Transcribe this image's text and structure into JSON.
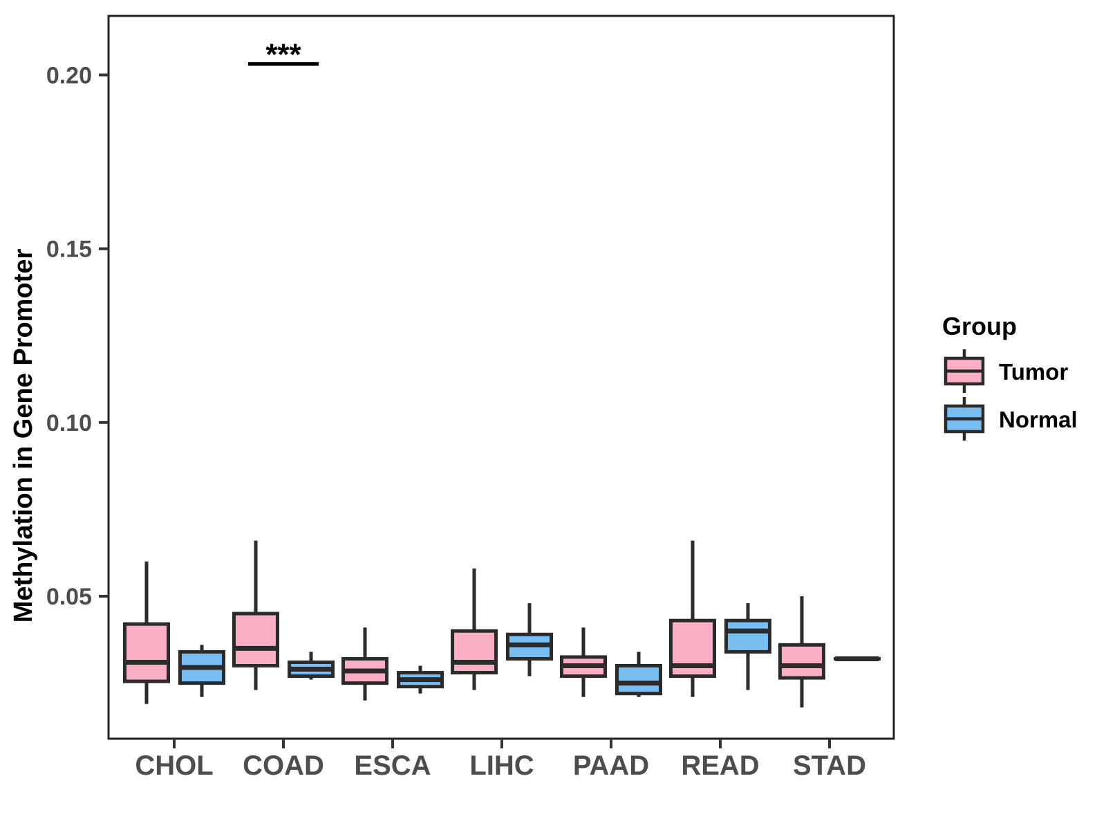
{
  "chart_data": {
    "type": "boxplot",
    "title": "",
    "xlabel": "",
    "ylabel": "Methylation in Gene Promoter",
    "categories": [
      "CHOL",
      "COAD",
      "ESCA",
      "LIHC",
      "PAAD",
      "READ",
      "STAD"
    ],
    "y_ticks": [
      {
        "value": 0.05,
        "label": "0.05"
      },
      {
        "value": 0.1,
        "label": "0.10"
      },
      {
        "value": 0.15,
        "label": "0.15"
      },
      {
        "value": 0.2,
        "label": "0.20"
      }
    ],
    "ylim": [
      0.009,
      0.217
    ],
    "grid": "off",
    "legend": {
      "title": "Group",
      "position": "right",
      "entries": [
        {
          "label": "Tumor",
          "color": "#FBAFC3"
        },
        {
          "label": "Normal",
          "color": "#79BEF2"
        }
      ]
    },
    "series": [
      {
        "name": "Tumor",
        "color": "#FBAFC3",
        "boxes": [
          {
            "category": "CHOL",
            "whisker_low": 0.019,
            "q1": 0.0255,
            "median": 0.031,
            "q3": 0.042,
            "whisker_high": 0.06
          },
          {
            "category": "COAD",
            "whisker_low": 0.023,
            "q1": 0.03,
            "median": 0.035,
            "q3": 0.045,
            "whisker_high": 0.066
          },
          {
            "category": "ESCA",
            "whisker_low": 0.02,
            "q1": 0.025,
            "median": 0.0285,
            "q3": 0.032,
            "whisker_high": 0.041
          },
          {
            "category": "LIHC",
            "whisker_low": 0.023,
            "q1": 0.028,
            "median": 0.031,
            "q3": 0.04,
            "whisker_high": 0.058
          },
          {
            "category": "PAAD",
            "whisker_low": 0.021,
            "q1": 0.027,
            "median": 0.03,
            "q3": 0.0325,
            "whisker_high": 0.041
          },
          {
            "category": "READ",
            "whisker_low": 0.021,
            "q1": 0.027,
            "median": 0.03,
            "q3": 0.043,
            "whisker_high": 0.066
          },
          {
            "category": "STAD",
            "whisker_low": 0.018,
            "q1": 0.0265,
            "median": 0.03,
            "q3": 0.036,
            "whisker_high": 0.05
          }
        ]
      },
      {
        "name": "Normal",
        "color": "#79BEF2",
        "boxes": [
          {
            "category": "CHOL",
            "whisker_low": 0.021,
            "q1": 0.025,
            "median": 0.0295,
            "q3": 0.034,
            "whisker_high": 0.036
          },
          {
            "category": "COAD",
            "whisker_low": 0.026,
            "q1": 0.027,
            "median": 0.029,
            "q3": 0.031,
            "whisker_high": 0.034
          },
          {
            "category": "ESCA",
            "whisker_low": 0.022,
            "q1": 0.024,
            "median": 0.026,
            "q3": 0.028,
            "whisker_high": 0.03
          },
          {
            "category": "LIHC",
            "whisker_low": 0.027,
            "q1": 0.032,
            "median": 0.036,
            "q3": 0.039,
            "whisker_high": 0.048
          },
          {
            "category": "PAAD",
            "whisker_low": 0.021,
            "q1": 0.022,
            "median": 0.025,
            "q3": 0.03,
            "whisker_high": 0.034
          },
          {
            "category": "READ",
            "whisker_low": 0.023,
            "q1": 0.034,
            "median": 0.04,
            "q3": 0.043,
            "whisker_high": 0.048
          },
          {
            "category": "STAD",
            "whisker_low": 0.032,
            "q1": 0.032,
            "median": 0.032,
            "q3": 0.032,
            "whisker_high": 0.032
          }
        ]
      }
    ],
    "annotations": [
      {
        "label": "***",
        "category": "COAD",
        "line_y": 0.2032
      }
    ]
  },
  "colors": {
    "box_border": "#2B2B2B",
    "median": "#2B2B2B",
    "panel_border": "#222222",
    "tick": "#333333",
    "axis_text": "#4D4D4D",
    "annotation": "#000000",
    "background": "#FFFFFF"
  }
}
